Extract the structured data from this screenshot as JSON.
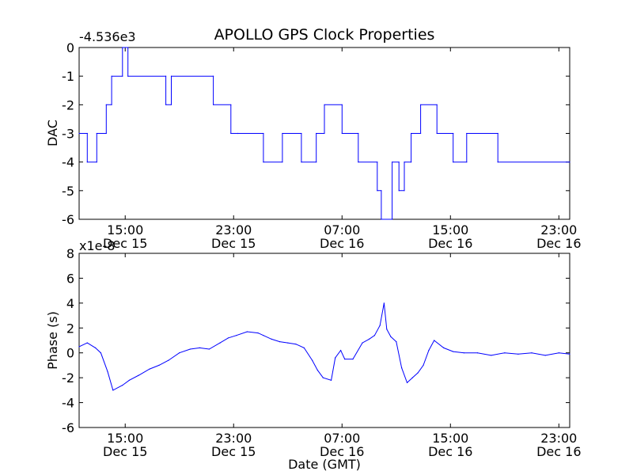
{
  "chart_data": [
    {
      "type": "line",
      "title": "APOLLO GPS Clock Properties",
      "ylabel": "DAC",
      "xlabel": "",
      "offset_label": "-4.536e3",
      "ylim": [
        -6,
        0
      ],
      "yticks": [
        0,
        -1,
        -2,
        -3,
        -4,
        -5,
        -6
      ],
      "ytick_labels": [
        "0",
        "-1",
        "-2",
        "-3",
        "-4",
        "-5",
        "-6"
      ],
      "xlim_hours": [
        11.6,
        47.8
      ],
      "xticks_hours": [
        15,
        23,
        31,
        39,
        47
      ],
      "xtick_labels": [
        [
          "15:00",
          "Dec 15"
        ],
        [
          "23:00",
          "Dec 15"
        ],
        [
          "07:00",
          "Dec 16"
        ],
        [
          "15:00",
          "Dec 16"
        ],
        [
          "23:00",
          "Dec 16"
        ]
      ],
      "series": [
        {
          "name": "DAC",
          "color": "#0000ff",
          "x_hours": [
            11.6,
            12.2,
            12.2,
            12.9,
            12.9,
            13.6,
            13.6,
            14.0,
            14.0,
            14.8,
            14.8,
            15.2,
            15.2,
            18.0,
            18.0,
            18.4,
            18.4,
            21.5,
            21.5,
            22.8,
            22.8,
            23.3,
            23.3,
            25.2,
            25.2,
            26.6,
            26.6,
            28.0,
            28.0,
            29.1,
            29.1,
            29.7,
            29.7,
            31.0,
            31.0,
            32.2,
            32.2,
            33.6,
            33.6,
            33.9,
            33.9,
            34.7,
            34.7,
            35.2,
            35.2,
            35.6,
            35.6,
            36.1,
            36.1,
            36.8,
            36.8,
            38.0,
            38.0,
            39.2,
            39.2,
            40.2,
            40.2,
            42.5,
            42.5,
            47.8
          ],
          "values": [
            -3,
            -3,
            -4,
            -4,
            -3,
            -3,
            -2,
            -2,
            -1,
            -1,
            0,
            0,
            -1,
            -1,
            -2,
            -2,
            -1,
            -1,
            -2,
            -2,
            -3,
            -3,
            -3,
            -3,
            -4,
            -4,
            -3,
            -3,
            -4,
            -4,
            -3,
            -3,
            -2,
            -2,
            -3,
            -3,
            -4,
            -4,
            -5,
            -5,
            -6,
            -6,
            -4,
            -4,
            -5,
            -5,
            -4,
            -4,
            -3,
            -3,
            -2,
            -2,
            -3,
            -3,
            -4,
            -4,
            -3,
            -3,
            -4,
            -4
          ]
        }
      ]
    },
    {
      "type": "line",
      "title": "",
      "ylabel": "Phase (s)",
      "xlabel": "Date (GMT)",
      "offset_label": "x1e-8",
      "ylim": [
        -6,
        8
      ],
      "yticks": [
        8,
        6,
        4,
        2,
        0,
        -2,
        -4,
        -6
      ],
      "ytick_labels": [
        "8",
        "6",
        "4",
        "2",
        "0",
        "-2",
        "-4",
        "-6"
      ],
      "xlim_hours": [
        11.6,
        47.8
      ],
      "xticks_hours": [
        15,
        23,
        31,
        39,
        47
      ],
      "xtick_labels": [
        [
          "15:00",
          "Dec 15"
        ],
        [
          "23:00",
          "Dec 15"
        ],
        [
          "07:00",
          "Dec 16"
        ],
        [
          "15:00",
          "Dec 16"
        ],
        [
          "23:00",
          "Dec 16"
        ]
      ],
      "series": [
        {
          "name": "Phase",
          "color": "#0000ff",
          "x_hours": [
            11.6,
            12.2,
            12.8,
            13.2,
            13.7,
            14.1,
            14.8,
            15.3,
            16.0,
            16.8,
            17.5,
            18.2,
            19.0,
            19.8,
            20.5,
            21.2,
            22.0,
            22.6,
            23.2,
            24.0,
            24.8,
            25.2,
            25.8,
            26.4,
            27.0,
            27.6,
            28.2,
            28.8,
            29.2,
            29.6,
            30.2,
            30.5,
            30.9,
            31.2,
            31.8,
            32.5,
            33.0,
            33.4,
            33.8,
            34.1,
            34.3,
            34.6,
            35.0,
            35.4,
            35.8,
            36.2,
            36.6,
            37.0,
            37.4,
            37.8,
            38.5,
            39.2,
            40.0,
            41.0,
            42.0,
            43.0,
            44.0,
            45.0,
            46.0,
            47.0,
            47.8
          ],
          "values": [
            0.5,
            0.8,
            0.4,
            0.0,
            -1.5,
            -3.0,
            -2.6,
            -2.2,
            -1.8,
            -1.3,
            -1.0,
            -0.6,
            0.0,
            0.3,
            0.4,
            0.3,
            0.8,
            1.2,
            1.4,
            1.7,
            1.6,
            1.4,
            1.1,
            0.9,
            0.8,
            0.7,
            0.4,
            -0.6,
            -1.4,
            -2.0,
            -2.2,
            -0.4,
            0.2,
            -0.5,
            -0.5,
            0.8,
            1.1,
            1.4,
            2.2,
            4.0,
            1.9,
            1.3,
            0.9,
            -1.2,
            -2.4,
            -2.0,
            -1.6,
            -1.0,
            0.2,
            1.0,
            0.4,
            0.1,
            0.0,
            0.0,
            -0.2,
            0.0,
            -0.1,
            0.0,
            -0.2,
            0.0,
            -0.1
          ]
        }
      ]
    }
  ]
}
